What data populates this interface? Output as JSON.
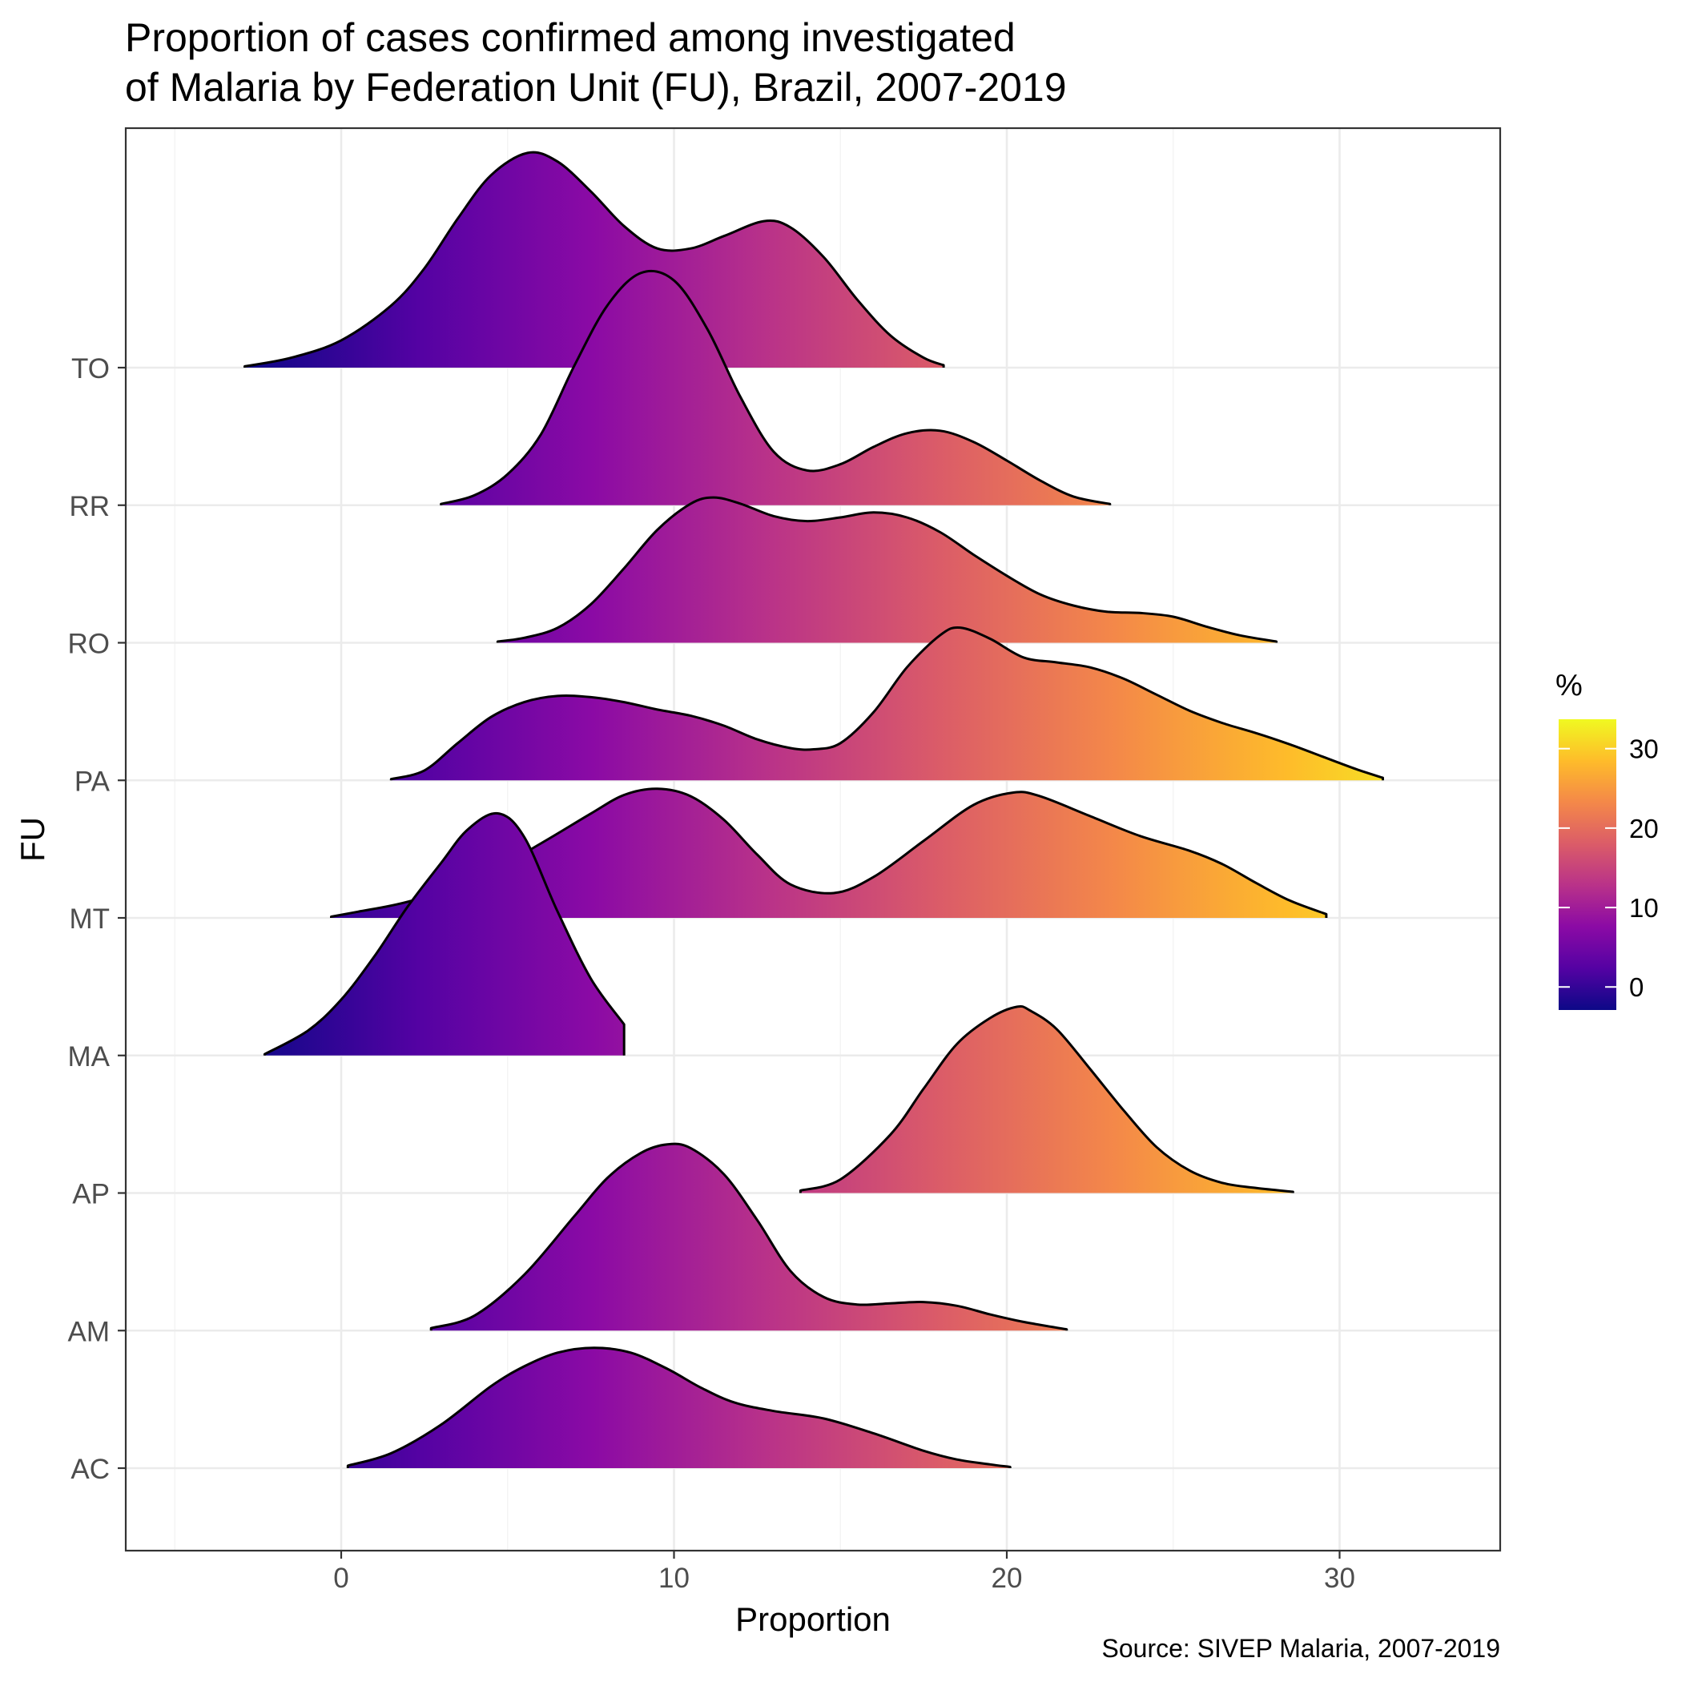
{
  "chart_data": {
    "type": "ridgeline",
    "title_lines": [
      "Proportion of cases confirmed among investigated",
      "of Malaria by Federation Unit (FU), Brazil, 2007-2019"
    ],
    "caption": "Source: SIVEP Malaria, 2007-2019",
    "xlabel": "Proportion",
    "ylabel": "FU",
    "xlim": [
      -6.5,
      34.8
    ],
    "x_ticks": [
      0,
      10,
      20,
      30
    ],
    "categories": [
      "AC",
      "AM",
      "AP",
      "MA",
      "MT",
      "PA",
      "RO",
      "RR",
      "TO"
    ],
    "grid": true,
    "legend": {
      "title": "%",
      "position": "right",
      "type": "colorbar",
      "palette": "plasma",
      "range": [
        -2.9,
        33.7
      ],
      "ticks": [
        0,
        10,
        20,
        30
      ]
    },
    "palette_stops": [
      "#0D0887",
      "#5402A3",
      "#8B0AA5",
      "#B93289",
      "#DB5C68",
      "#F48849",
      "#FEBC2A",
      "#F0F921"
    ],
    "series": [
      {
        "category": "AC",
        "x": [
          0.2,
          1.5,
          3,
          4.5,
          5.5,
          6.5,
          7.6,
          8.7,
          9.8,
          10.8,
          11.8,
          13,
          14.5,
          16,
          17.5,
          18.5,
          19.5,
          20.1
        ],
        "density": [
          0.02,
          0.12,
          0.35,
          0.66,
          0.82,
          0.93,
          0.97,
          0.93,
          0.8,
          0.65,
          0.53,
          0.46,
          0.4,
          0.28,
          0.14,
          0.07,
          0.03,
          0.01
        ]
      },
      {
        "category": "AM",
        "x": [
          2.7,
          4,
          5.5,
          7,
          8,
          9,
          9.8,
          10.5,
          11.5,
          12.5,
          13.5,
          14.5,
          15.5,
          16.5,
          17.5,
          18.5,
          19.5,
          20.5,
          21.8
        ],
        "density": [
          0.02,
          0.12,
          0.45,
          0.92,
          1.23,
          1.43,
          1.5,
          1.47,
          1.26,
          0.89,
          0.48,
          0.27,
          0.21,
          0.22,
          0.23,
          0.2,
          0.13,
          0.07,
          0.01
        ]
      },
      {
        "category": "AP",
        "x": [
          13.8,
          15,
          16.5,
          17.5,
          18.5,
          19.5,
          20.3,
          20.7,
          21.5,
          22.5,
          23.5,
          24.5,
          25.5,
          26.5,
          27.5,
          28.6
        ],
        "density": [
          0.02,
          0.11,
          0.47,
          0.84,
          1.2,
          1.41,
          1.5,
          1.47,
          1.32,
          1.0,
          0.67,
          0.37,
          0.18,
          0.08,
          0.04,
          0.01
        ]
      },
      {
        "category": "MA",
        "x": [
          -2.3,
          -1,
          0,
          1,
          2,
          3,
          3.8,
          4.7,
          5.5,
          6.5,
          7.5,
          8.5
        ],
        "density": [
          0.01,
          0.2,
          0.45,
          0.8,
          1.2,
          1.55,
          1.82,
          1.95,
          1.76,
          1.16,
          0.62,
          0.25
        ]
      },
      {
        "category": "MT",
        "x": [
          -0.3,
          0.5,
          2,
          4,
          6,
          7.5,
          8.5,
          9.5,
          10.5,
          11.5,
          12.5,
          13.5,
          14.8,
          16,
          17.5,
          19,
          20.2,
          21,
          22.5,
          24,
          25.5,
          26.5,
          27.5,
          28.5,
          29.6
        ],
        "density": [
          0.01,
          0.05,
          0.13,
          0.3,
          0.6,
          0.84,
          0.99,
          1.04,
          0.98,
          0.79,
          0.51,
          0.27,
          0.2,
          0.33,
          0.62,
          0.91,
          1.01,
          0.98,
          0.82,
          0.66,
          0.54,
          0.43,
          0.28,
          0.14,
          0.03
        ]
      },
      {
        "category": "PA",
        "x": [
          1.5,
          2.5,
          3.5,
          4.5,
          5.5,
          6.5,
          7.5,
          8.5,
          9.5,
          10.5,
          11.5,
          12.5,
          13.5,
          14.2,
          15,
          16,
          17,
          18,
          18.6,
          19.5,
          20.5,
          21.5,
          22.5,
          23.5,
          24.5,
          25.5,
          26.5,
          27.5,
          28.5,
          29.5,
          30.5,
          31.3
        ],
        "density": [
          0.01,
          0.08,
          0.3,
          0.51,
          0.63,
          0.68,
          0.67,
          0.63,
          0.57,
          0.52,
          0.44,
          0.33,
          0.26,
          0.25,
          0.3,
          0.55,
          0.91,
          1.17,
          1.23,
          1.14,
          0.99,
          0.95,
          0.91,
          0.82,
          0.69,
          0.56,
          0.46,
          0.38,
          0.29,
          0.19,
          0.09,
          0.02
        ]
      },
      {
        "category": "RO",
        "x": [
          4.7,
          5.5,
          6.5,
          7.5,
          8.5,
          9.5,
          10.5,
          11.2,
          12,
          13,
          14,
          15,
          16,
          17,
          18,
          19,
          20,
          21,
          22,
          23,
          24,
          25,
          26,
          27,
          28.1
        ],
        "density": [
          0.01,
          0.04,
          0.12,
          0.31,
          0.6,
          0.91,
          1.12,
          1.17,
          1.12,
          1.02,
          0.98,
          1.01,
          1.05,
          1.01,
          0.89,
          0.71,
          0.54,
          0.39,
          0.3,
          0.25,
          0.24,
          0.21,
          0.13,
          0.06,
          0.01
        ]
      },
      {
        "category": "RR",
        "x": [
          3,
          4,
          5,
          6,
          7,
          8,
          9,
          10,
          11,
          12,
          13,
          14,
          15,
          16,
          17,
          18,
          19,
          20,
          21,
          22,
          23.1
        ],
        "density": [
          0.01,
          0.08,
          0.25,
          0.57,
          1.12,
          1.61,
          1.87,
          1.81,
          1.42,
          0.87,
          0.43,
          0.28,
          0.33,
          0.47,
          0.58,
          0.6,
          0.51,
          0.36,
          0.2,
          0.07,
          0.01
        ]
      },
      {
        "category": "TO",
        "x": [
          -2.9,
          -1.5,
          0,
          1.5,
          2.5,
          3.5,
          4.5,
          5.6,
          6.5,
          7.5,
          8.5,
          9.5,
          10.5,
          11.5,
          12.7,
          13.5,
          14.5,
          15.5,
          16.5,
          17.5,
          18.1
        ],
        "density": [
          0.01,
          0.08,
          0.22,
          0.5,
          0.8,
          1.2,
          1.55,
          1.73,
          1.66,
          1.42,
          1.14,
          0.96,
          0.96,
          1.06,
          1.18,
          1.13,
          0.89,
          0.55,
          0.26,
          0.08,
          0.02
        ]
      }
    ]
  }
}
